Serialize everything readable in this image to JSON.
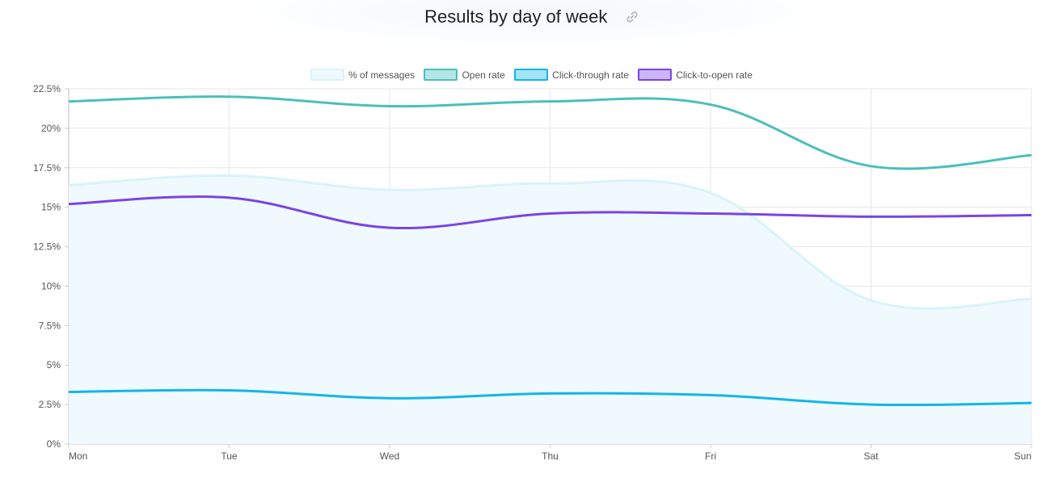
{
  "chart_data": {
    "type": "line",
    "title": "Results by day of week",
    "categories": [
      "Mon",
      "Tue",
      "Wed",
      "Thu",
      "Fri",
      "Sat",
      "Sun"
    ],
    "ylim": [
      0,
      22.5
    ],
    "yticks": [
      "0%",
      "2.5%",
      "5%",
      "7.5%",
      "10%",
      "12.5%",
      "15%",
      "17.5%",
      "20%",
      "22.5%"
    ],
    "ytick_values": [
      0,
      2.5,
      5,
      7.5,
      10,
      12.5,
      15,
      17.5,
      20,
      22.5
    ],
    "grid": true,
    "legend_position": "top-center",
    "series": [
      {
        "name": "% of messages",
        "values": [
          16.4,
          17.0,
          16.1,
          16.5,
          15.9,
          9.1,
          9.2
        ],
        "color": "#d9f3fb",
        "fill": "#f0f9fd",
        "area": true
      },
      {
        "name": "Open rate",
        "values": [
          21.7,
          22.0,
          21.4,
          21.7,
          21.5,
          17.6,
          18.3
        ],
        "color": "#4bbfbb",
        "fill": "#b4e6e3",
        "area": false
      },
      {
        "name": "Click-through rate",
        "values": [
          3.3,
          3.4,
          2.9,
          3.2,
          3.1,
          2.5,
          2.6
        ],
        "color": "#13b5ea",
        "fill": "#a5e3f7",
        "area": false
      },
      {
        "name": "Click-to-open rate",
        "values": [
          15.2,
          15.6,
          13.7,
          14.6,
          14.6,
          14.4,
          14.5
        ],
        "color": "#7b44e6",
        "fill": "#cbb5f7",
        "area": false
      }
    ]
  },
  "icons": {
    "title_link": "link-icon"
  }
}
